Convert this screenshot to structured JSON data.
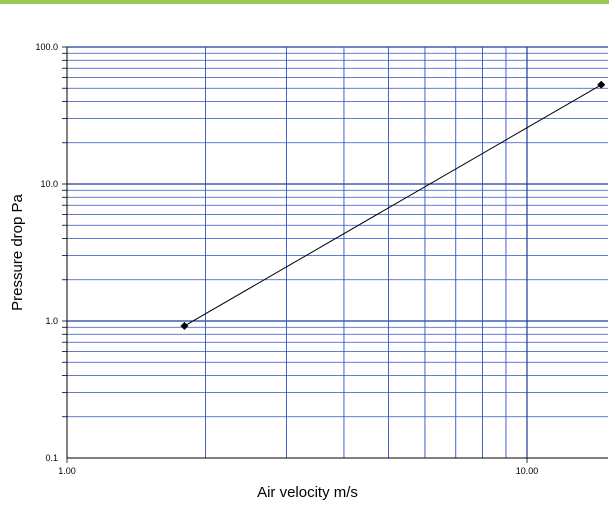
{
  "colors": {
    "top_rule": "#9dc856",
    "grid_major": "#1f3d99",
    "grid_minor": "#3050c8",
    "line": "#000000",
    "marker": "#000000"
  },
  "chart_data": {
    "type": "scatter",
    "title": "",
    "xlabel": "Air velocity m/s",
    "ylabel": "Pressure drop Pa",
    "xscale": "log",
    "yscale": "log",
    "xlim": [
      1,
      15
    ],
    "ylim": [
      0.1,
      100
    ],
    "x_tick_labels": [
      "1.00",
      "10.00"
    ],
    "y_tick_labels": [
      "0.1",
      "1.0",
      "10.0",
      "100.0"
    ],
    "grid": true,
    "legend": "none",
    "series": [
      {
        "x": [
          1.8,
          14.5
        ],
        "y": [
          0.92,
          53
        ]
      }
    ]
  }
}
